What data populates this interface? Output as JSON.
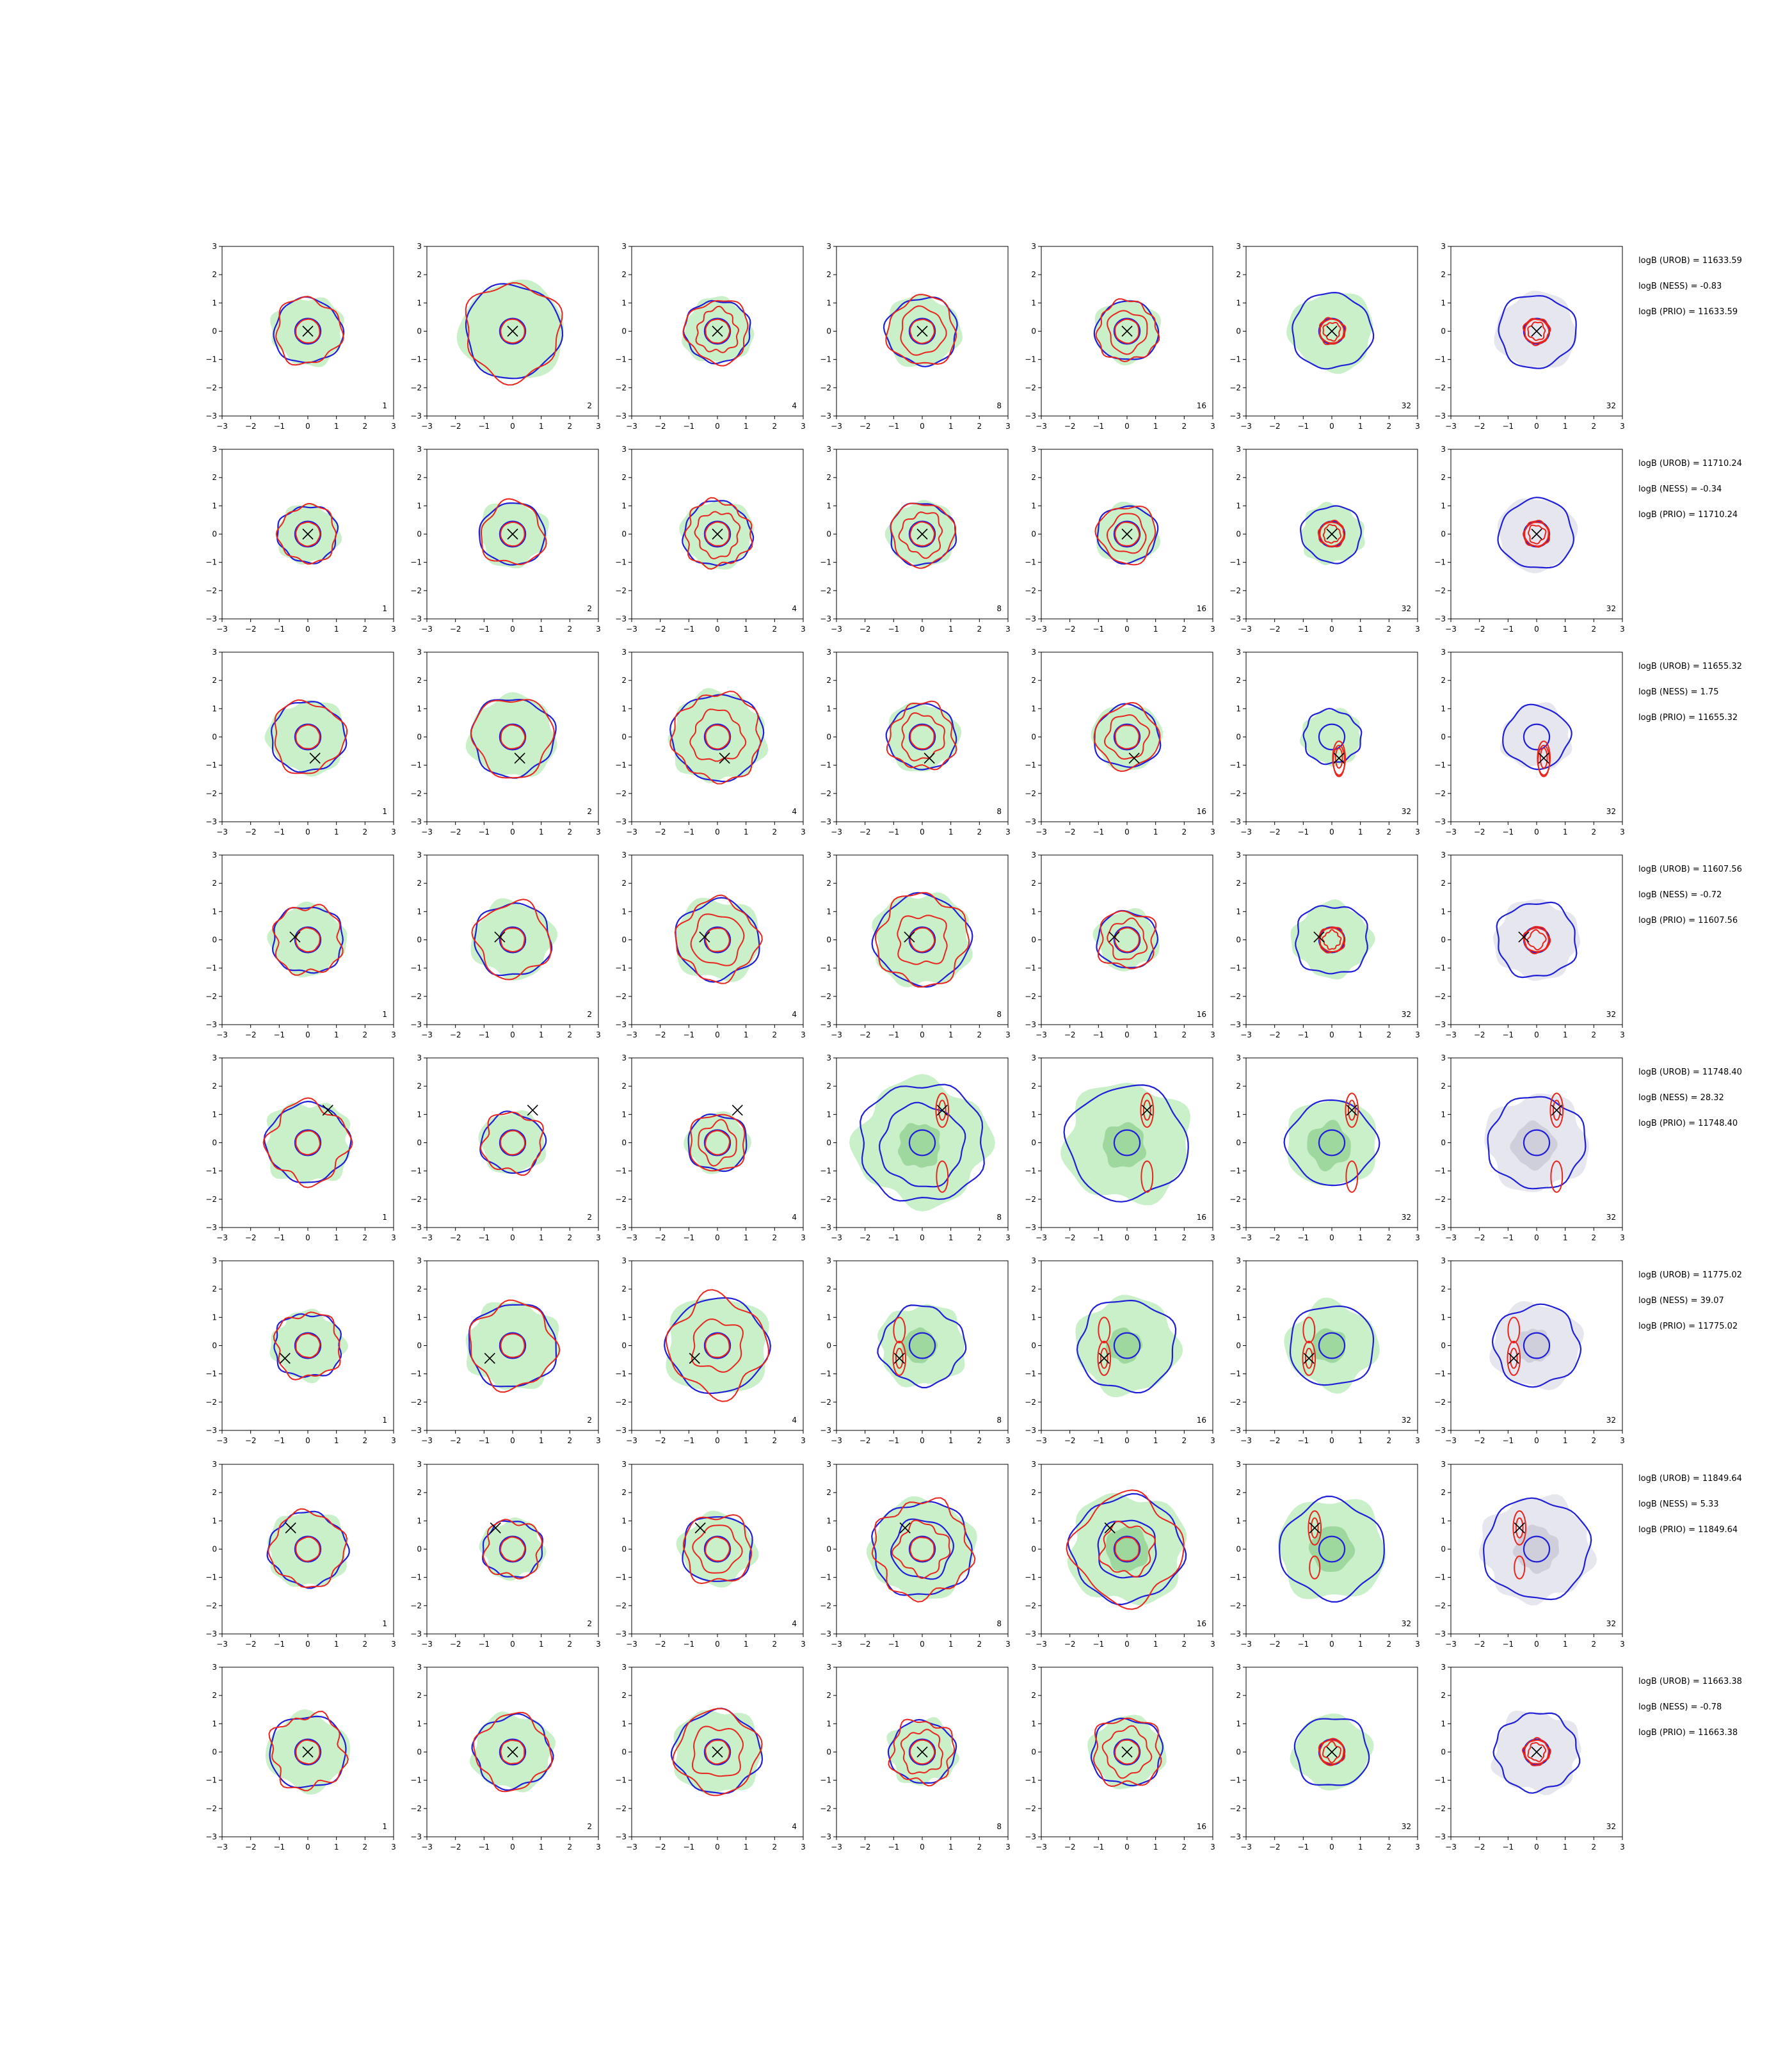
{
  "chart_data": {
    "type": "contour-grid",
    "rows": 8,
    "cols": 7,
    "xlim": [
      -3,
      3
    ],
    "ylim": [
      -3,
      3
    ],
    "ticks": [
      -3,
      -2,
      -1,
      0,
      1,
      2,
      3
    ],
    "tick_labels": [
      "−3",
      "−2",
      "−1",
      "0",
      "1",
      "2",
      "3"
    ],
    "column_labels": [
      "1",
      "2",
      "4",
      "8",
      "16",
      "32",
      "32"
    ],
    "colors": {
      "red_contour": "#e8251f",
      "blue_contour": "#1f1fd8",
      "green_fill": "#c9f0c9",
      "green_fill_dark": "#9fd89f",
      "grey_fill": "#e6e6ee",
      "grey_fill_dark": "#cfcfdb",
      "marker": "#000000"
    },
    "markers": [
      {
        "row": 1,
        "x": 0.0,
        "y": 0.0
      },
      {
        "row": 2,
        "x": 0.0,
        "y": 0.0
      },
      {
        "row": 3,
        "x": 0.25,
        "y": -0.75
      },
      {
        "row": 4,
        "x": -0.45,
        "y": 0.1
      },
      {
        "row": 5,
        "x": 0.7,
        "y": 1.15
      },
      {
        "row": 6,
        "x": -0.8,
        "y": -0.45
      },
      {
        "row": 7,
        "x": -0.6,
        "y": 0.75
      },
      {
        "row": 8,
        "x": 0.0,
        "y": 0.0
      }
    ],
    "annotations": [
      {
        "row": 1,
        "lines": [
          "logB (UROB) = 11633.59",
          "logB (NESS) = -0.83",
          "logB (PRIO) = 11633.59"
        ]
      },
      {
        "row": 2,
        "lines": [
          "logB (UROB) = 11710.24",
          "logB (NESS) = -0.34",
          "logB (PRIO) = 11710.24"
        ]
      },
      {
        "row": 3,
        "lines": [
          "logB (UROB) = 11655.32",
          "logB (NESS) = 1.75",
          "logB (PRIO) = 11655.32"
        ]
      },
      {
        "row": 4,
        "lines": [
          "logB (UROB) = 11607.56",
          "logB (NESS) = -0.72",
          "logB (PRIO) = 11607.56"
        ]
      },
      {
        "row": 5,
        "lines": [
          "logB (UROB) = 11748.40",
          "logB (NESS) = 28.32",
          "logB (PRIO) = 11748.40"
        ]
      },
      {
        "row": 6,
        "lines": [
          "logB (UROB) = 11775.02",
          "logB (NESS) = 39.07",
          "logB (PRIO) = 11775.02"
        ]
      },
      {
        "row": 7,
        "lines": [
          "logB (UROB) = 11849.64",
          "logB (NESS) = 5.33",
          "logB (PRIO) = 11849.64"
        ]
      },
      {
        "row": 8,
        "lines": [
          "logB (UROB) = 11663.38",
          "logB (NESS) = -0.78",
          "logB (PRIO) = 11663.38"
        ]
      }
    ]
  }
}
